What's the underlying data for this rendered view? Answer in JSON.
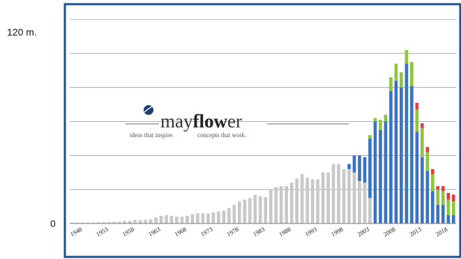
{
  "chart_data": {
    "type": "bar",
    "stacked": true,
    "title": "",
    "xlabel": "",
    "ylabel": "",
    "y_tick_labels": {
      "top": "120 m.",
      "bottom": "0"
    },
    "ylim": [
      0,
      120
    ],
    "grid": true,
    "legend": "none",
    "x_tick_labels": [
      "1948",
      "1953",
      "1958",
      "1963",
      "1968",
      "1973",
      "1978",
      "1983",
      "1988",
      "1993",
      "1998",
      "2003",
      "2008",
      "2013",
      "2018"
    ],
    "x": [
      1946,
      1947,
      1948,
      1949,
      1950,
      1951,
      1952,
      1953,
      1954,
      1955,
      1956,
      1957,
      1958,
      1959,
      1960,
      1961,
      1962,
      1963,
      1964,
      1965,
      1966,
      1967,
      1968,
      1969,
      1970,
      1971,
      1972,
      1973,
      1974,
      1975,
      1976,
      1977,
      1978,
      1979,
      1980,
      1981,
      1982,
      1983,
      1984,
      1985,
      1986,
      1987,
      1988,
      1989,
      1990,
      1991,
      1992,
      1993,
      1994,
      1995,
      1996,
      1997,
      1998,
      1999,
      2000,
      2001,
      2002,
      2003,
      2004,
      2005,
      2006,
      2007,
      2008,
      2009,
      2010,
      2011,
      2012,
      2013,
      2014,
      2015,
      2016,
      2017,
      2018,
      2019
    ],
    "series": [
      {
        "values": [
          0.5,
          0.5,
          0.5,
          0.5,
          0.5,
          0.6,
          0.8,
          0.8,
          1,
          1,
          1.5,
          1.5,
          2,
          2,
          2.2,
          2.5,
          3.5,
          4.5,
          5,
          4.5,
          4,
          4,
          4.5,
          5.5,
          6,
          6,
          6,
          6.5,
          7,
          7.5,
          9,
          11,
          13,
          14,
          15,
          17,
          16,
          15.5,
          20,
          21.5,
          22,
          22,
          24,
          26.5,
          29,
          27,
          26,
          26,
          30,
          30,
          35,
          35,
          32,
          32,
          30,
          25,
          24,
          15,
          0,
          0,
          0,
          0,
          0,
          0,
          0,
          0,
          0,
          0,
          0,
          0,
          0,
          0,
          0,
          0
        ]
      },
      {
        "values": [
          0,
          0,
          0,
          0,
          0,
          0,
          0,
          0,
          0,
          0,
          0,
          0,
          0,
          0,
          0,
          0,
          0,
          0,
          0,
          0,
          0,
          0,
          0,
          0,
          0,
          0,
          0,
          0,
          0,
          0,
          0,
          0,
          0,
          0,
          0,
          0,
          0,
          0,
          0,
          0,
          0,
          0,
          0,
          0,
          0,
          0,
          0,
          0,
          0,
          0,
          0,
          0,
          0,
          3,
          10,
          15,
          15,
          35,
          60,
          55,
          60,
          78,
          84,
          80,
          94,
          81,
          54,
          39,
          31,
          19,
          11,
          11,
          5,
          5
        ]
      },
      {
        "values": [
          0,
          0,
          0,
          0,
          0,
          0,
          0,
          0,
          0,
          0,
          0,
          0,
          0,
          0,
          0,
          0,
          0,
          0,
          0,
          0,
          0,
          0,
          0,
          0,
          0,
          0,
          0,
          0,
          0,
          0,
          0,
          0,
          0,
          0,
          0,
          0,
          0,
          0,
          0,
          0,
          0,
          0,
          0,
          0,
          0,
          0,
          0,
          0,
          0,
          0,
          0,
          0,
          0,
          0,
          0,
          0,
          0,
          2,
          2,
          6,
          4,
          8,
          10,
          9,
          8,
          14,
          13,
          17,
          11,
          10,
          9,
          8,
          9,
          8
        ]
      },
      {
        "values": [
          0,
          0,
          0,
          0,
          0,
          0,
          0,
          0,
          0,
          0,
          0,
          0,
          0,
          0,
          0,
          0,
          0,
          0,
          0,
          0,
          0,
          0,
          0,
          0,
          0,
          0,
          0,
          0,
          0,
          0,
          0,
          0,
          0,
          0,
          0,
          0,
          0,
          0,
          0,
          0,
          0,
          0,
          0,
          0,
          0,
          0,
          0,
          0,
          0,
          0,
          0,
          0,
          0,
          0,
          0,
          0,
          0,
          0,
          0,
          0,
          0,
          0,
          0,
          0,
          0,
          0,
          4,
          3,
          3,
          3,
          2,
          3,
          4,
          4
        ]
      }
    ],
    "colors": {
      "series": [
        "#c8c8c8",
        "#3b73c3",
        "#8cc63f",
        "#e0403e"
      ],
      "frame": "#1f4e8c",
      "grid": "#999999"
    }
  },
  "logo": {
    "text_light": "may",
    "text_bold": "flow",
    "text_tail": "er",
    "tagline_left": "ideas that inspire.",
    "tagline_right": "concepts that work."
  }
}
